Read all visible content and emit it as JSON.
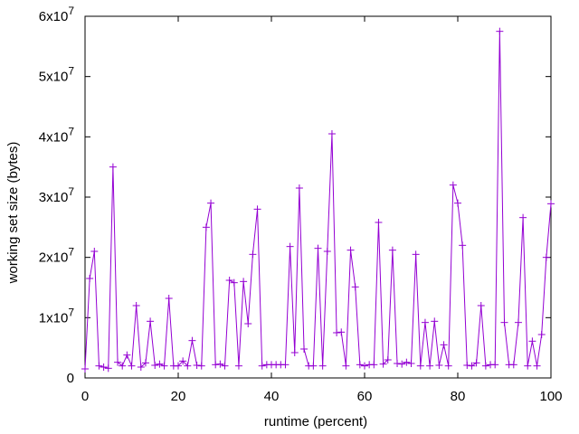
{
  "chart_data": {
    "type": "line",
    "title": "",
    "xlabel": "runtime (percent)",
    "ylabel": "working set size (bytes)",
    "xlim": [
      0,
      100
    ],
    "ylim": [
      0,
      60000000
    ],
    "grid": false,
    "legend": "none",
    "marker": "+",
    "color": "#9400d3",
    "xticks": [
      {
        "value": 0,
        "label": "0"
      },
      {
        "value": 20,
        "label": "20"
      },
      {
        "value": 40,
        "label": "40"
      },
      {
        "value": 60,
        "label": "60"
      },
      {
        "value": 80,
        "label": "80"
      },
      {
        "value": 100,
        "label": "100"
      }
    ],
    "yticks": [
      {
        "value": 0,
        "mant": "0",
        "exp": ""
      },
      {
        "value": 10000000,
        "mant": "1x10",
        "exp": "7"
      },
      {
        "value": 20000000,
        "mant": "2x10",
        "exp": "7"
      },
      {
        "value": 30000000,
        "mant": "3x10",
        "exp": "7"
      },
      {
        "value": 40000000,
        "mant": "4x10",
        "exp": "7"
      },
      {
        "value": 50000000,
        "mant": "5x10",
        "exp": "7"
      },
      {
        "value": 60000000,
        "mant": "6x10",
        "exp": "7"
      }
    ],
    "series": [
      {
        "x": [
          0,
          1,
          2,
          3,
          4,
          5,
          6,
          7,
          8,
          9,
          10,
          11,
          12,
          13,
          14,
          15,
          16,
          17,
          18,
          19,
          20,
          21,
          22,
          23,
          24,
          25,
          26,
          27,
          28,
          29,
          30,
          31,
          32,
          33,
          34,
          35,
          36,
          37,
          38,
          39,
          40,
          41,
          42,
          43,
          44,
          45,
          46,
          47,
          48,
          49,
          50,
          51,
          52,
          53,
          54,
          55,
          56,
          57,
          58,
          59,
          60,
          61,
          62,
          63,
          64,
          65,
          66,
          67,
          68,
          69,
          70,
          71,
          72,
          73,
          74,
          75,
          76,
          77,
          78,
          79,
          80,
          81,
          82,
          83,
          84,
          85,
          86,
          87,
          88,
          89,
          90,
          91,
          92,
          93,
          94,
          95,
          96,
          97,
          98,
          99,
          100
        ],
        "values": [
          1500000,
          16500000,
          21000000,
          2000000,
          1800000,
          1600000,
          35000000,
          2600000,
          2000000,
          3800000,
          2000000,
          12000000,
          1800000,
          2500000,
          9400000,
          2100000,
          2300000,
          2000000,
          13200000,
          2000000,
          2000000,
          2800000,
          2000000,
          6200000,
          2100000,
          2000000,
          25000000,
          29000000,
          2200000,
          2300000,
          2000000,
          16200000,
          15800000,
          2000000,
          16000000,
          9000000,
          20500000,
          28000000,
          2000000,
          2200000,
          2200000,
          2200000,
          2200000,
          2200000,
          21800000,
          4200000,
          31500000,
          4800000,
          2000000,
          2000000,
          21500000,
          2000000,
          21000000,
          40500000,
          7500000,
          7600000,
          2000000,
          21200000,
          15100000,
          2200000,
          2000000,
          2200000,
          2200000,
          25800000,
          2300000,
          3000000,
          21200000,
          2400000,
          2300000,
          2600000,
          2400000,
          20500000,
          2000000,
          9200000,
          2000000,
          9400000,
          2100000,
          5500000,
          2000000,
          32000000,
          29000000,
          22000000,
          2100000,
          2000000,
          2500000,
          12000000,
          2000000,
          2200000,
          2200000,
          57500000,
          9200000,
          2200000,
          2200000,
          9200000,
          26600000,
          2000000,
          6100000,
          2000000,
          7200000,
          20000000,
          28900000
        ]
      }
    ]
  }
}
